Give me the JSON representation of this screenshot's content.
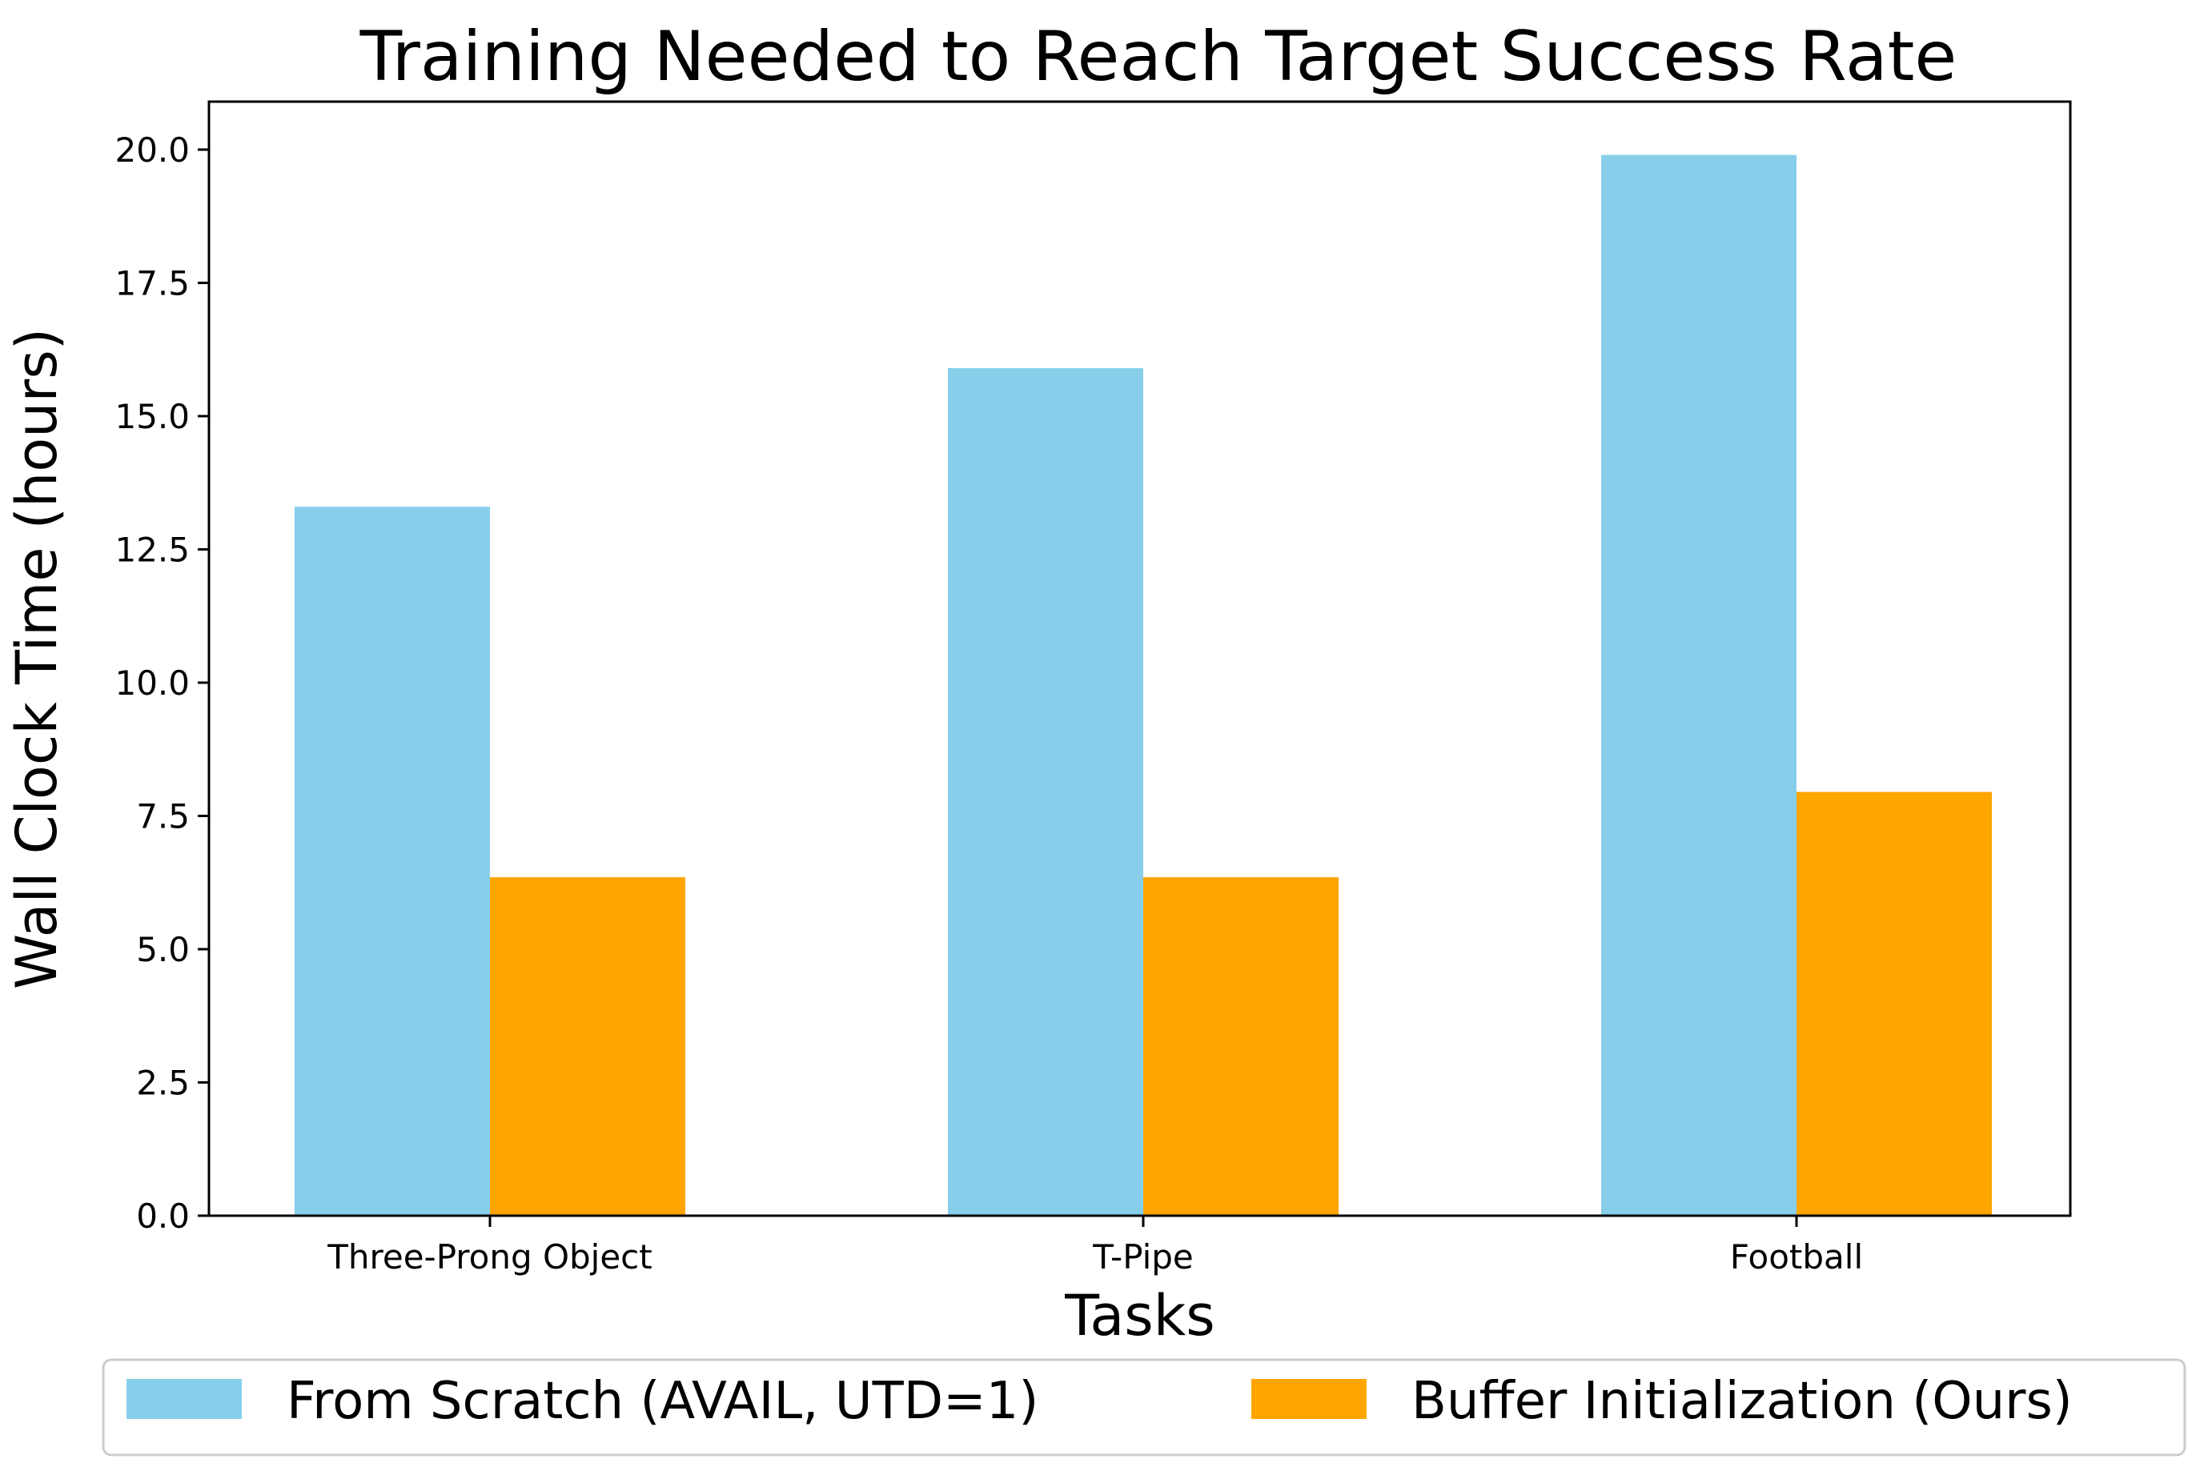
{
  "chart_data": {
    "type": "bar",
    "title": "Training Needed to Reach Target Success Rate",
    "xlabel": "Tasks",
    "ylabel": "Wall Clock Time (hours)",
    "categories": [
      "Three-Prong Object",
      "T-Pipe",
      "Football"
    ],
    "series": [
      {
        "name": "From Scratch (AVAIL, UTD=1)",
        "color": "#87CEEB",
        "values": [
          13.3,
          15.9,
          19.9
        ]
      },
      {
        "name": "Buffer Initialization (Ours)",
        "color": "#FFA500",
        "values": [
          6.35,
          6.35,
          7.95
        ]
      }
    ],
    "ylim": [
      0,
      20.9
    ],
    "yticks": [
      0,
      2.5,
      5,
      7.5,
      10,
      12.5,
      15,
      17.5,
      20
    ],
    "ytick_labels": [
      "0.0",
      "2.5",
      "5.0",
      "7.5",
      "10.0",
      "12.5",
      "15.0",
      "17.5",
      "20.0"
    ],
    "grid": false,
    "legend_position": "bottom"
  }
}
